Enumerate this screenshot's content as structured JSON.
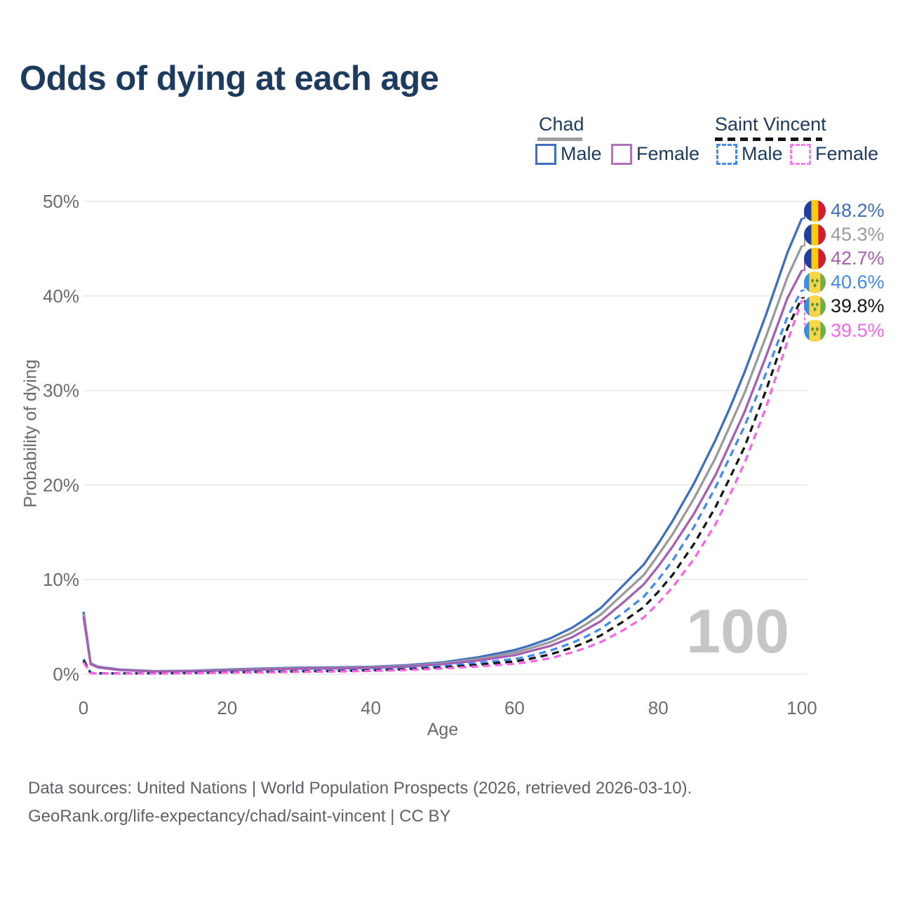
{
  "title": "Odds of dying at each age",
  "watermark_age": "100",
  "legend": {
    "groups": [
      {
        "label": "Chad",
        "items": [
          {
            "label": "Male"
          },
          {
            "label": "Female"
          }
        ]
      },
      {
        "label": "Saint Vincent",
        "items": [
          {
            "label": "Male"
          },
          {
            "label": "Female"
          }
        ]
      }
    ]
  },
  "footer": {
    "line1": "Data sources: United Nations | World Population Prospects (2026, retrieved 2026-03-10).",
    "line2": "GeoRank.org/life-expectancy/chad/saint-vincent | CC BY"
  },
  "colors": {
    "title_text": "#1d3a5f",
    "tick_text": "#6b6b6b",
    "gridline": "#e7e7e7",
    "watermark": "#c6c6c6",
    "footer_text": "#5e6166",
    "chad_male": "#3d6ec2",
    "chad_both": "#9a9a9a",
    "chad_female": "#a75fb3",
    "sv_male": "#3f8af5",
    "sv_both": "#151515",
    "sv_female": "#f866e6",
    "flag_chad": {
      "blue": "#1e3f9b",
      "yellow": "#fecb00",
      "red": "#d21c31"
    },
    "flag_saint_vincent": {
      "blue": "#3f8ede",
      "yellow": "#f8d648",
      "green": "#6fae4a",
      "diamond": "#4d9342"
    }
  },
  "chart_data": {
    "type": "line",
    "title": "Odds of dying at each age",
    "xlabel": "Age",
    "ylabel": "Probability of dying",
    "xlim": [
      0,
      100
    ],
    "ylim": [
      0,
      50
    ],
    "xticks": [
      0,
      20,
      40,
      60,
      80,
      100
    ],
    "yticks": [
      0,
      10,
      20,
      30,
      40,
      50
    ],
    "ytick_suffix": "%",
    "grid": true,
    "legend_position": "top-right",
    "x": [
      0,
      1,
      2,
      5,
      10,
      15,
      20,
      25,
      30,
      35,
      40,
      45,
      50,
      55,
      60,
      62,
      65,
      68,
      70,
      72,
      75,
      78,
      80,
      82,
      85,
      88,
      90,
      92,
      95,
      98,
      100
    ],
    "series": [
      {
        "name": "Chad Male",
        "country": "Chad",
        "sex": "male",
        "color": "#3d6ec2",
        "dash": null,
        "flag": "chad",
        "end_label": "48.2%",
        "end_value": 48.2,
        "values": [
          6.6,
          1.15,
          0.8,
          0.5,
          0.33,
          0.36,
          0.5,
          0.6,
          0.7,
          0.72,
          0.78,
          0.95,
          1.25,
          1.8,
          2.55,
          3.0,
          3.8,
          4.9,
          5.9,
          7.0,
          9.3,
          11.6,
          13.8,
          16.2,
          20.2,
          24.8,
          28.2,
          31.9,
          38.0,
          44.6,
          48.2
        ]
      },
      {
        "name": "Chad",
        "country": "Chad",
        "sex": "both",
        "color": "#9a9a9a",
        "dash": null,
        "flag": "chad",
        "end_label": "45.3%",
        "end_value": 45.3,
        "values": [
          6.35,
          1.1,
          0.76,
          0.47,
          0.31,
          0.33,
          0.45,
          0.55,
          0.64,
          0.66,
          0.72,
          0.87,
          1.15,
          1.62,
          2.28,
          2.7,
          3.4,
          4.4,
          5.3,
          6.3,
          8.4,
          10.5,
          12.6,
          14.8,
          18.6,
          22.9,
          26.3,
          29.7,
          35.7,
          42.0,
          45.3
        ]
      },
      {
        "name": "Chad Female",
        "country": "Chad",
        "sex": "female",
        "color": "#a75fb3",
        "dash": null,
        "flag": "chad",
        "end_label": "42.7%",
        "end_value": 42.7,
        "values": [
          6.1,
          1.05,
          0.72,
          0.44,
          0.29,
          0.31,
          0.4,
          0.5,
          0.58,
          0.6,
          0.66,
          0.8,
          1.05,
          1.45,
          2.0,
          2.4,
          3.0,
          3.9,
          4.75,
          5.6,
          7.5,
          9.5,
          11.4,
          13.5,
          17.0,
          21.1,
          24.4,
          27.7,
          33.6,
          39.8,
          42.7
        ]
      },
      {
        "name": "Saint Vincent Male",
        "country": "Saint Vincent",
        "sex": "male",
        "color": "#3f8af5",
        "dash": [
          10,
          7
        ],
        "flag": "saint_vincent",
        "end_label": "40.6%",
        "end_value": 40.6,
        "values": [
          1.6,
          0.14,
          0.1,
          0.09,
          0.09,
          0.14,
          0.22,
          0.28,
          0.33,
          0.38,
          0.45,
          0.6,
          0.85,
          1.2,
          1.6,
          1.9,
          2.5,
          3.3,
          4.0,
          4.8,
          6.4,
          8.2,
          10.0,
          12.0,
          15.6,
          19.8,
          23.0,
          26.2,
          31.8,
          37.8,
          40.6
        ]
      },
      {
        "name": "Saint Vincent",
        "country": "Saint Vincent",
        "sex": "both",
        "color": "#151515",
        "dash": [
          10,
          7
        ],
        "flag": "saint_vincent",
        "end_label": "39.8%",
        "end_value": 39.8,
        "values": [
          1.45,
          0.12,
          0.09,
          0.08,
          0.08,
          0.12,
          0.19,
          0.24,
          0.29,
          0.33,
          0.4,
          0.52,
          0.72,
          1.0,
          1.35,
          1.6,
          2.1,
          2.8,
          3.4,
          4.1,
          5.5,
          7.1,
          8.7,
          10.5,
          13.8,
          17.7,
          20.8,
          24.0,
          30.0,
          36.6,
          39.8
        ]
      },
      {
        "name": "Saint Vincent Female",
        "country": "Saint Vincent",
        "sex": "female",
        "color": "#f866e6",
        "dash": [
          10,
          7
        ],
        "flag": "saint_vincent",
        "end_label": "39.5%",
        "end_value": 39.5,
        "values": [
          1.25,
          0.11,
          0.08,
          0.07,
          0.07,
          0.1,
          0.16,
          0.2,
          0.25,
          0.28,
          0.34,
          0.44,
          0.6,
          0.82,
          1.1,
          1.3,
          1.7,
          2.3,
          2.8,
          3.4,
          4.6,
          6.0,
          7.5,
          9.2,
          12.2,
          15.9,
          19.0,
          22.3,
          28.2,
          35.2,
          39.5
        ]
      }
    ]
  }
}
